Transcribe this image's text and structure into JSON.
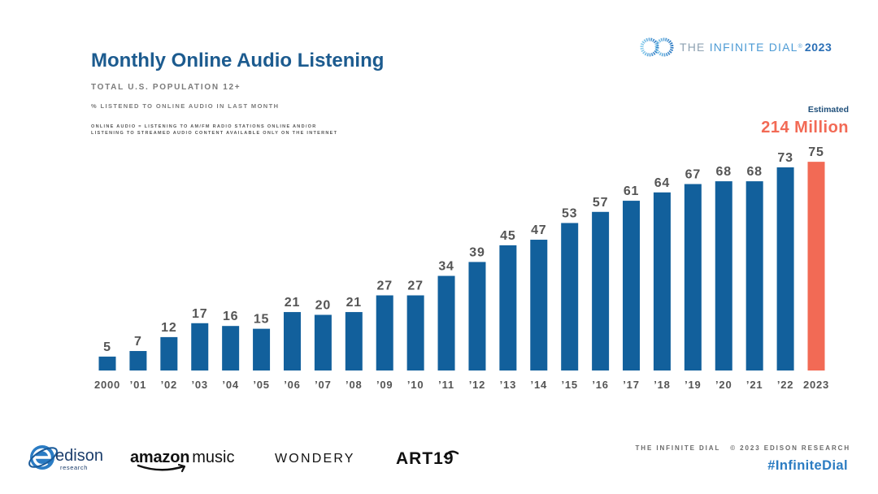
{
  "brand": {
    "the": "THE",
    "name": "INFINITE DIAL",
    "reg": "®",
    "year": "2023",
    "icon": "infinity-icon"
  },
  "chart_data": {
    "type": "bar",
    "title": "Monthly Online Audio Listening",
    "subtitle": "TOTAL U.S. POPULATION 12+",
    "measure": "% LISTENED TO ONLINE AUDIO IN LAST MONTH",
    "note": [
      "ONLINE AUDIO = LISTENING TO AM/FM RADIO STATIONS ONLINE AND/OR",
      "LISTENING TO STREAMED AUDIO CONTENT AVAILABLE ONLY ON THE INTERNET"
    ],
    "categories": [
      "2000",
      "’01",
      "’02",
      "’03",
      "’04",
      "’05",
      "’06",
      "’07",
      "’08",
      "’09",
      "’10",
      "’11",
      "’12",
      "’13",
      "’14",
      "’15",
      "’16",
      "’17",
      "’18",
      "’19",
      "’20",
      "’21",
      "’22",
      "2023"
    ],
    "values": [
      5,
      7,
      12,
      17,
      16,
      15,
      21,
      20,
      21,
      27,
      27,
      34,
      39,
      45,
      47,
      53,
      57,
      61,
      64,
      67,
      68,
      68,
      73,
      75
    ],
    "ylim": [
      0,
      80
    ],
    "grid": false,
    "legend": "none",
    "bar_color": "#12609c",
    "highlight": {
      "category": "2023",
      "color": "#f26a55",
      "label": "Estimated",
      "annotation": "214 Million"
    }
  },
  "sponsors": {
    "edison": {
      "word": "edison",
      "sub": "research",
      "icon": "edison-logo-icon"
    },
    "amazon_music": {
      "brand": "amazon",
      "product": "music",
      "icon": "amazon-smile-icon"
    },
    "wondery": "WONDERY",
    "art19": "ART19"
  },
  "footer": {
    "publisher": "THE INFINITE DIAL",
    "copyright": "© 2023 EDISON RESEARCH",
    "hashtag": "#InfiniteDial"
  },
  "colors": {
    "title": "#1c5b8f",
    "bar": "#12609c",
    "highlight": "#f26a55",
    "hashtag": "#2b7cc2",
    "text_gray": "#7b7b7b"
  }
}
